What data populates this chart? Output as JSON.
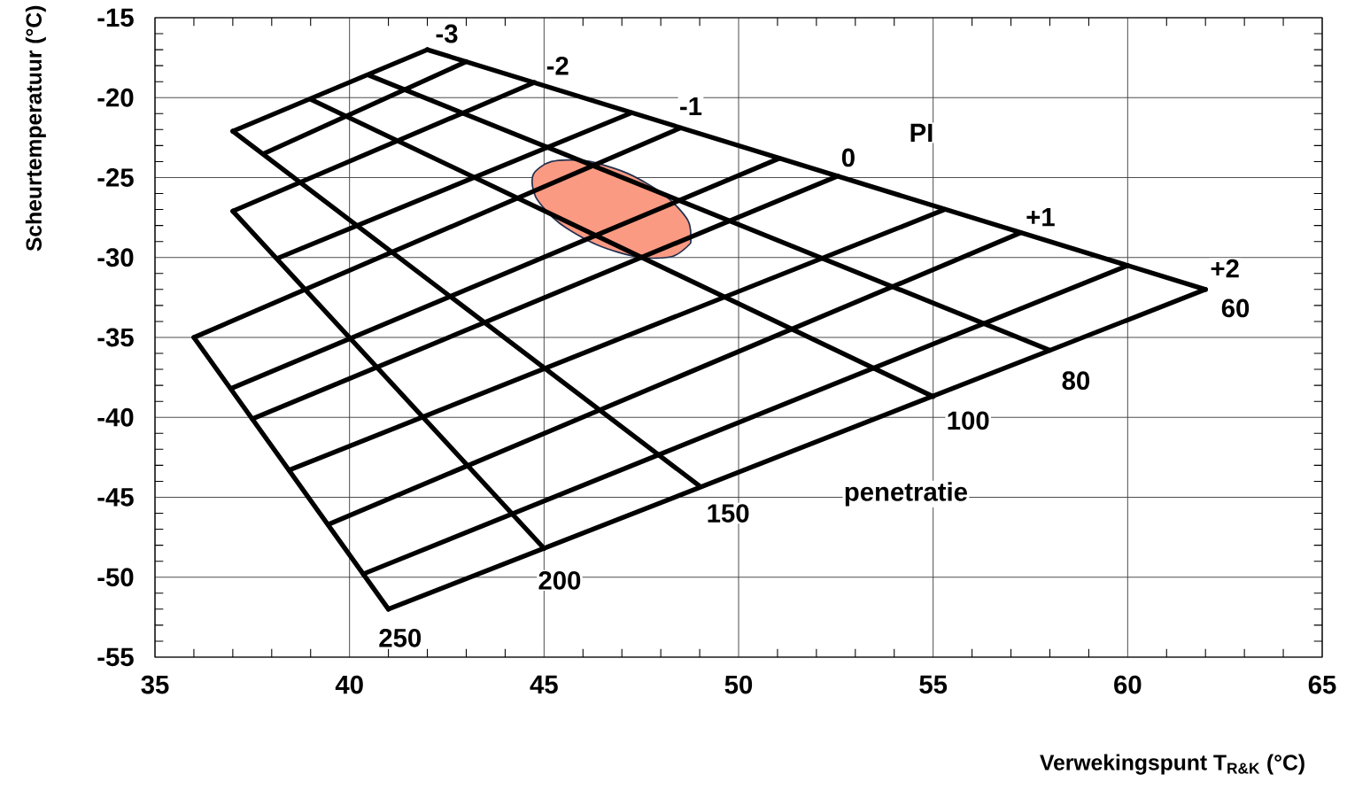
{
  "chart_data": {
    "type": "line",
    "xlabel": "Verwekingspunt T$_{R&K}$ (°C)",
    "ylabel": "Scheurtemperatuur (°C)",
    "xlim": [
      35,
      65
    ],
    "xticks": [
      35,
      40,
      45,
      50,
      55,
      60,
      65
    ],
    "ylim": [
      -55,
      -15
    ],
    "yticks": [
      -55,
      -50,
      -45,
      -40,
      -35,
      -30,
      -25,
      -20,
      -15
    ],
    "grid": true,
    "series": [
      {
        "type": "area",
        "color": "#fb9a82",
        "x": [
          48.77,
          48.3,
          47.42,
          46.35,
          45.39,
          44.79,
          44.72,
          45.19,
          46.08,
          47.14,
          48.1,
          48.7
        ],
        "values": [
          -29.1,
          -29.93,
          -29.98,
          -29.2,
          -27.84,
          -26.24,
          -24.83,
          -24.0,
          -23.96,
          -24.73,
          -26.1,
          -27.69
        ]
      },
      {
        "color": "#000000",
        "x": [
          36,
          41
        ],
        "values": [
          -35,
          -52
        ]
      },
      {
        "color": "#000000",
        "x": [
          37,
          45
        ],
        "values": [
          -27.1,
          -48.2
        ]
      },
      {
        "color": "#000000",
        "x": [
          37,
          49
        ],
        "values": [
          -22.1,
          -44.3
        ]
      },
      {
        "color": "#000000",
        "x": [
          39,
          55
        ],
        "values": [
          -20.1,
          -38.7
        ]
      },
      {
        "color": "#000000",
        "x": [
          40.5,
          58
        ],
        "values": [
          -18.6,
          -35.8
        ]
      },
      {
        "color": "#000000",
        "x": [
          42,
          62
        ],
        "values": [
          -17,
          -32
        ]
      },
      {
        "color": "#000000",
        "x": [
          37,
          42
        ],
        "values": [
          -22.1,
          -17
        ]
      },
      {
        "color": "#000000",
        "x": [
          37.8,
          43
        ],
        "values": [
          -23.5,
          -17.75
        ]
      },
      {
        "color": "#000000",
        "x": [
          37,
          44.75
        ],
        "values": [
          -27.1,
          -19.05
        ]
      },
      {
        "color": "#000000",
        "x": [
          38.15,
          47.25
        ],
        "values": [
          -30.05,
          -20.95
        ]
      },
      {
        "color": "#000000",
        "x": [
          36,
          48.5
        ],
        "values": [
          -35,
          -21.9
        ]
      },
      {
        "color": "#000000",
        "x": [
          36.95,
          51.05
        ],
        "values": [
          -38.2,
          -23.8
        ]
      },
      {
        "color": "#000000",
        "x": [
          37.5,
          52.55
        ],
        "values": [
          -40.1,
          -24.9
        ]
      },
      {
        "color": "#000000",
        "x": [
          38.45,
          55.3
        ],
        "values": [
          -43.3,
          -27
        ]
      },
      {
        "color": "#000000",
        "x": [
          39.45,
          57.25
        ],
        "values": [
          -46.7,
          -28.45
        ]
      },
      {
        "color": "#000000",
        "x": [
          40.35,
          60
        ],
        "values": [
          -49.8,
          -30.5
        ]
      },
      {
        "color": "#000000",
        "x": [
          41,
          62
        ],
        "values": [
          -52,
          -32
        ]
      }
    ],
    "annotations": [
      "-3",
      "-2",
      "-1",
      "0",
      "+1",
      "+2",
      "PI",
      "60",
      "80",
      "100",
      "150",
      "200",
      "250",
      "penetratie"
    ]
  }
}
